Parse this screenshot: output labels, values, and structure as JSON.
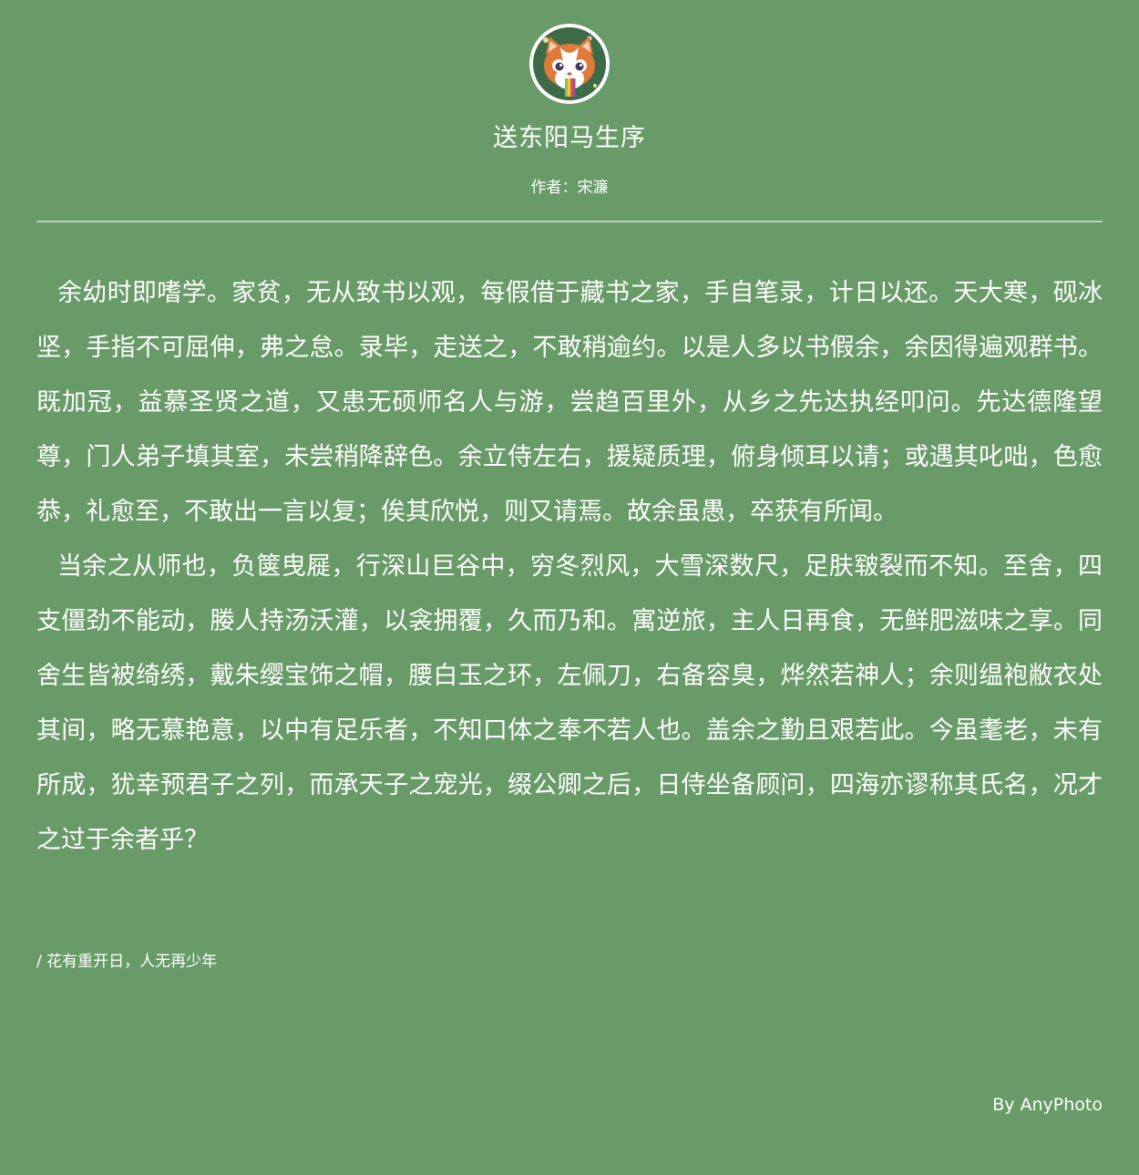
{
  "header": {
    "avatar_icon": "cat-avatar-icon",
    "title": "送东阳马生序",
    "author": "作者：宋濂"
  },
  "article": {
    "paragraphs": [
      "余幼时即嗜学。家贫，无从致书以观，每假借于藏书之家，手自笔录，计日以还。天大寒，砚冰坚，手指不可屈伸，弗之怠。录毕，走送之，不敢稍逾约。以是人多以书假余，余因得遍观群书。既加冠，益慕圣贤之道，又患无硕师名人与游，尝趋百里外，从乡之先达执经叩问。先达德隆望尊，门人弟子填其室，未尝稍降辞色。余立侍左右，援疑质理，俯身倾耳以请；或遇其叱咄，色愈恭，礼愈至，不敢出一言以复；俟其欣悦，则又请焉。故余虽愚，卒获有所闻。",
      "当余之从师也，负箧曳屣，行深山巨谷中，穷冬烈风，大雪深数尺，足肤皲裂而不知。至舍，四支僵劲不能动，媵人持汤沃灌，以衾拥覆，久而乃和。寓逆旅，主人日再食，无鲜肥滋味之享。同舍生皆被绮绣，戴朱缨宝饰之帽，腰白玉之环，左佩刀，右备容臭，烨然若神人；余则缊袍敝衣处其间，略无慕艳意，以中有足乐者，不知口体之奉不若人也。盖余之勤且艰若此。今虽耄老，未有所成，犹幸预君子之列，而承天子之宠光，缀公卿之后，日侍坐备顾问，四海亦谬称其氏名，况才之过于余者乎？"
    ]
  },
  "footer": {
    "quote": "/ 花有重开日，人无再少年",
    "credit": "By AnyPhoto"
  },
  "colors": {
    "background": "#689b67",
    "text": "#ffffff"
  }
}
